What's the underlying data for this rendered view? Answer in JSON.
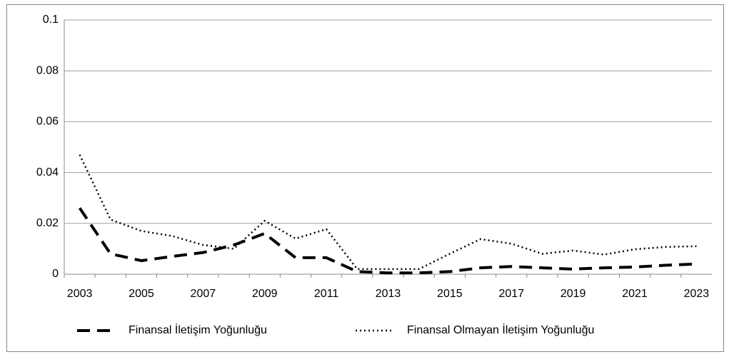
{
  "chart_data": {
    "type": "line",
    "categories": [
      "2003",
      null,
      "2005",
      null,
      "2007",
      null,
      "2009",
      null,
      "2011",
      null,
      "2013",
      null,
      "2015",
      null,
      "2017",
      null,
      "2019",
      null,
      "2021",
      null,
      "2023"
    ],
    "series": [
      {
        "name": "Finansal İletişim Yoğunluğu",
        "color": "#000000",
        "style": "dashed",
        "values": [
          0.026,
          0.008,
          0.0053,
          0.007,
          0.0085,
          0.0115,
          0.016,
          0.0065,
          0.0065,
          0.001,
          0.0005,
          0.0005,
          0.001,
          0.0025,
          0.003,
          0.0025,
          0.002,
          0.0025,
          0.0028,
          0.0035,
          0.004
        ]
      },
      {
        "name": "Finansal Olmayan İletişim Yoğunluğu",
        "color": "#000000",
        "style": "dotted",
        "values": [
          0.047,
          0.0215,
          0.017,
          0.015,
          0.0115,
          0.01,
          0.021,
          0.014,
          0.0177,
          0.002,
          0.002,
          0.002,
          0.008,
          0.0138,
          0.012,
          0.008,
          0.0093,
          0.0077,
          0.0098,
          0.0107,
          0.011
        ]
      }
    ],
    "ylim": [
      0,
      0.1
    ],
    "yticks": [
      0,
      0.02,
      0.04,
      0.06,
      0.08,
      0.1
    ],
    "grid": true,
    "legend": "bottom"
  }
}
